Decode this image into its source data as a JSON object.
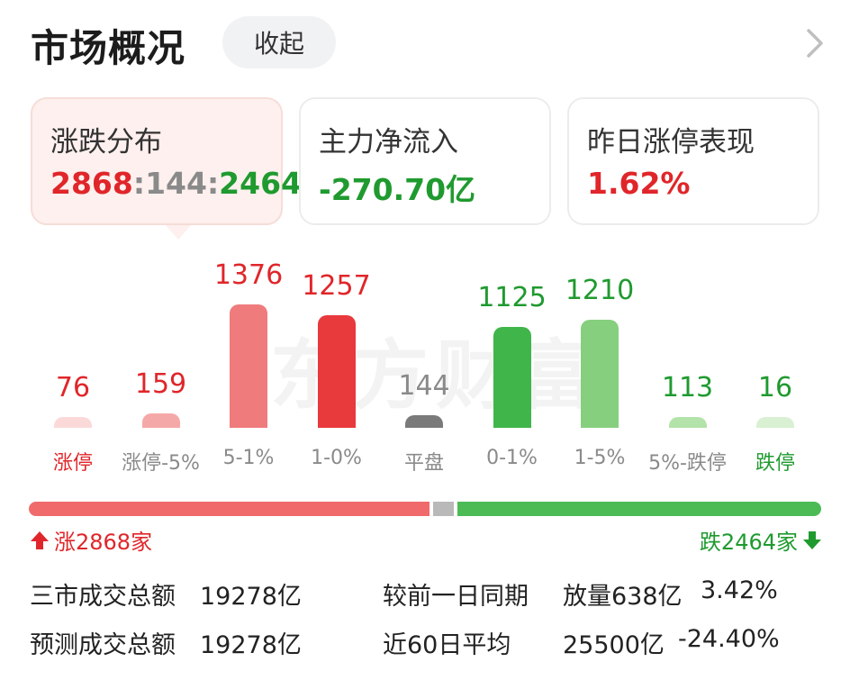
{
  "header": {
    "title": "市场概况",
    "collapse_label": "收起"
  },
  "cards": [
    {
      "label": "涨跌分布",
      "up": "2868",
      "flat": "144",
      "down": "2464",
      "sep": ":"
    },
    {
      "label": "主力净流入",
      "value": "-270.70亿"
    },
    {
      "label": "昨日涨停表现",
      "value": "1.62%"
    }
  ],
  "watermark": "东方财富",
  "chart_data": {
    "type": "bar",
    "categories": [
      "涨停",
      "涨停-5%",
      "5-1%",
      "1-0%",
      "平盘",
      "0-1%",
      "1-5%",
      "5%-跌停",
      "跌停"
    ],
    "values": [
      76,
      159,
      1376,
      1257,
      144,
      1125,
      1210,
      113,
      16
    ],
    "value_labels": [
      "76",
      "159",
      "1376",
      "1257",
      "144",
      "1125",
      "1210",
      "113",
      "16"
    ],
    "colors": [
      "#fbd9d9",
      "#f5a8a8",
      "#ef7b7d",
      "#e8393d",
      "#7a7a7a",
      "#3fb54a",
      "#86cf7e",
      "#b3e2aa",
      "#d9f0d3"
    ],
    "value_colors": [
      "#e0262a",
      "#e0262a",
      "#e0262a",
      "#e0262a",
      "#8a8a8a",
      "#1f9a2f",
      "#1f9a2f",
      "#1f9a2f",
      "#1f9a2f"
    ],
    "label_colors": [
      "#e0262a",
      "#8a8a8a",
      "#8a8a8a",
      "#8a8a8a",
      "#8a8a8a",
      "#8a8a8a",
      "#8a8a8a",
      "#8a8a8a",
      "#1f9a2f"
    ]
  },
  "distribution": {
    "up": 2868,
    "flat": 144,
    "down": 2464,
    "up_label": "涨2868家",
    "down_label": "跌2464家"
  },
  "stats": {
    "total_label": "三市成交总额",
    "total_value": "19278亿",
    "compare_label": "较前一日同期",
    "compare_value": "放量638亿",
    "compare_pct": "3.42%",
    "forecast_label": "预测成交总额",
    "forecast_value": "19278亿",
    "avg_label": "近60日平均",
    "avg_value": "25500亿",
    "avg_pct": "-24.40%"
  },
  "icons": {
    "chevron": "chevron-right-icon",
    "up": "arrow-up-icon",
    "down": "arrow-down-icon"
  }
}
